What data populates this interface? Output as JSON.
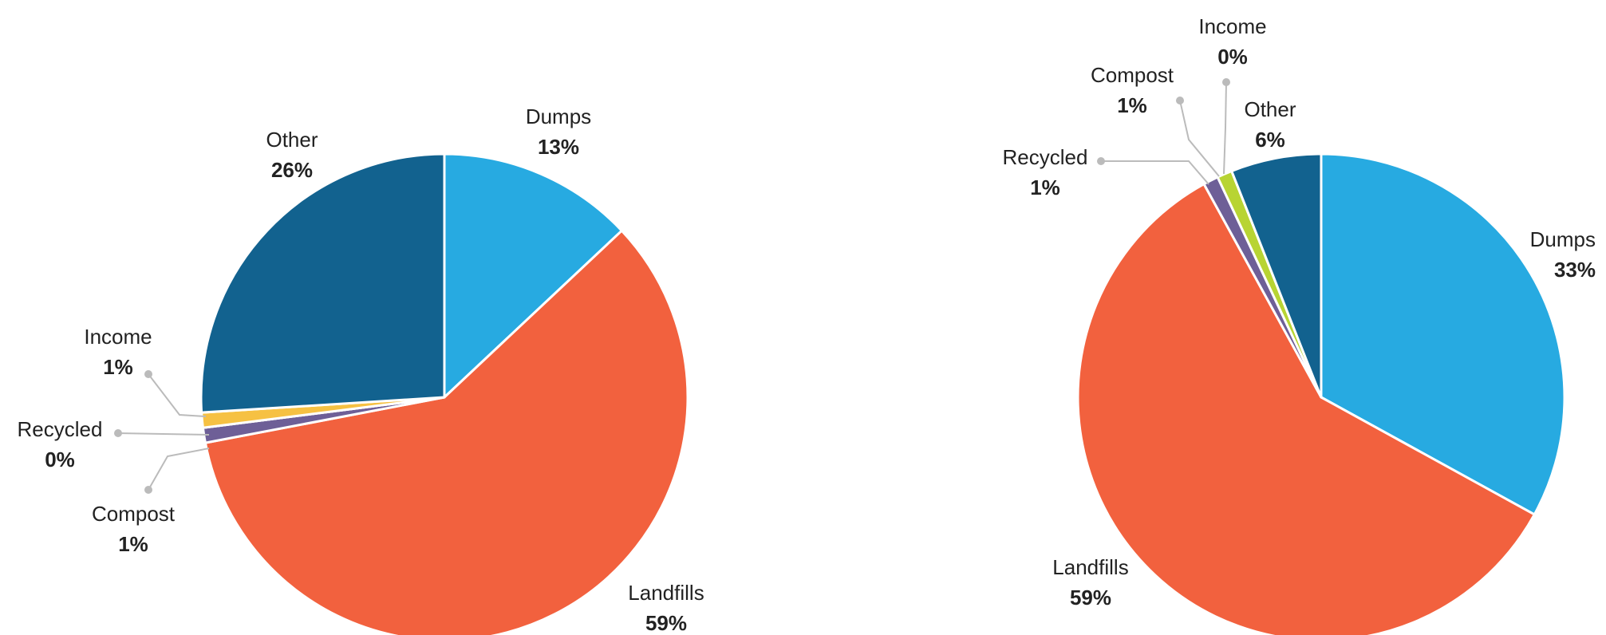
{
  "chart_data": [
    {
      "type": "pie",
      "categories": [
        "Dumps",
        "Landfills",
        "Compost",
        "Recycled",
        "Income",
        "Other"
      ],
      "values": [
        13,
        59,
        1,
        0,
        1,
        26
      ],
      "value_labels": [
        "13%",
        "59%",
        "1%",
        "0%",
        "1%",
        "26%"
      ],
      "colors": [
        "#27aae1",
        "#f2613e",
        "#6e5f97",
        "#8a8fa3",
        "#f6c143",
        "#12628f"
      ]
    },
    {
      "type": "pie",
      "categories": [
        "Dumps",
        "Landfills",
        "Recycled",
        "Compost",
        "Income",
        "Other"
      ],
      "values": [
        33,
        59,
        1,
        1,
        0,
        6
      ],
      "value_labels": [
        "33%",
        "59%",
        "1%",
        "1%",
        "0%",
        "6%"
      ],
      "colors": [
        "#27aae1",
        "#f2613e",
        "#6e5f97",
        "#b8d433",
        "#f6c143",
        "#12628f"
      ]
    }
  ]
}
